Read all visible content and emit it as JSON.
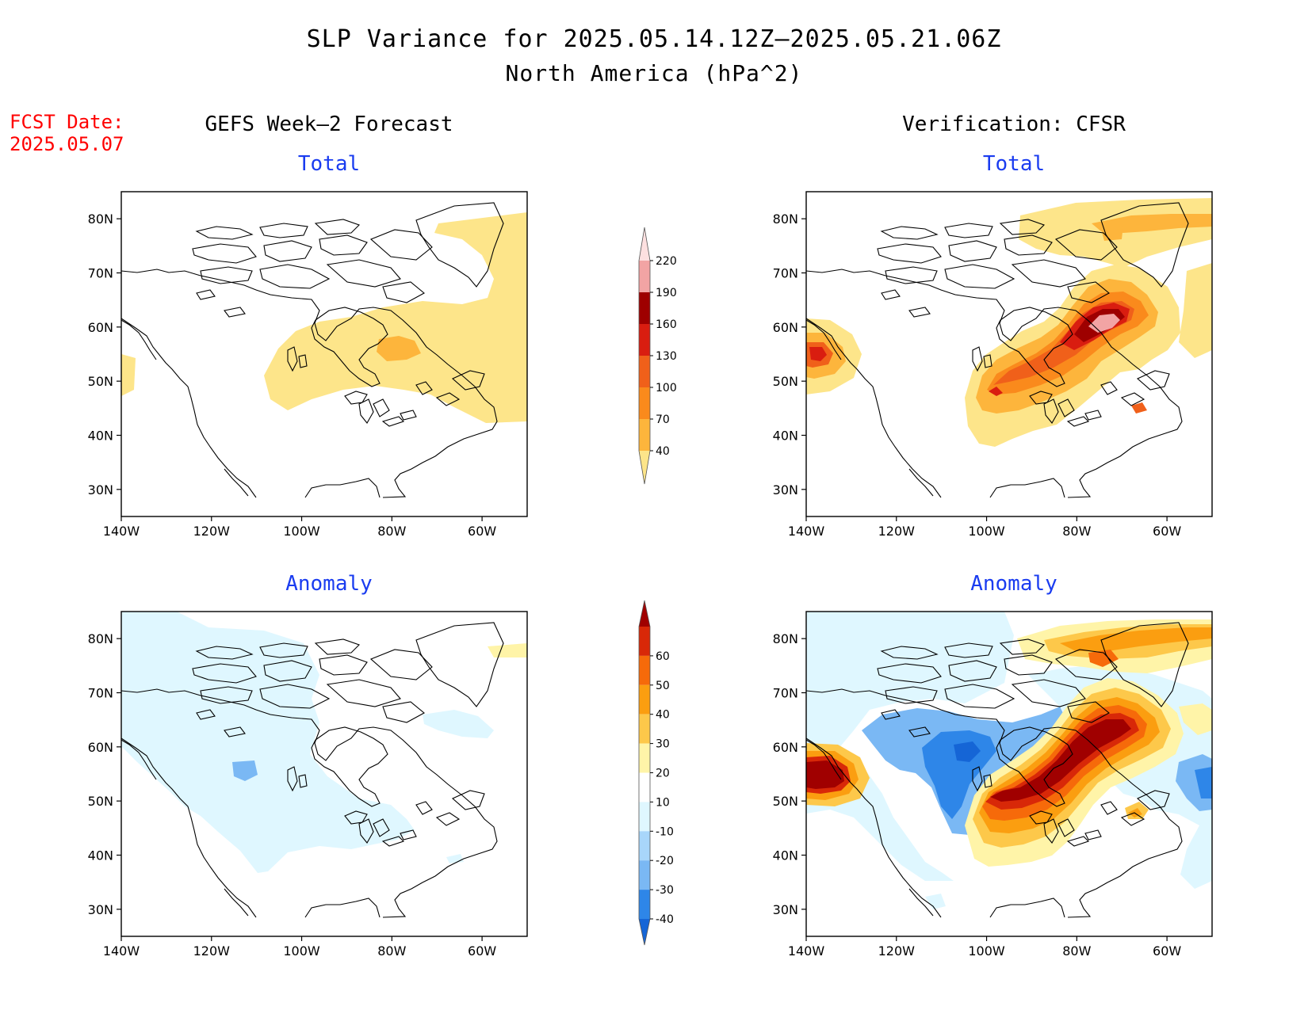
{
  "header": {
    "title_line1": "SLP Variance for 2025.05.14.12Z–2025.05.21.06Z",
    "title_line2": "North America (hPa^2)",
    "fcst_label": "FCST Date:",
    "fcst_date": "2025.05.07"
  },
  "columns": {
    "left_title": "GEFS Week–2 Forecast",
    "right_title": "Verification: CFSR"
  },
  "panels": {
    "top_left_title": "Total",
    "top_right_title": "Total",
    "bottom_left_title": "Anomaly",
    "bottom_right_title": "Anomaly"
  },
  "axes": {
    "lat_labels": [
      "80N",
      "70N",
      "60N",
      "50N",
      "40N",
      "30N"
    ],
    "lon_labels": [
      "140W",
      "120W",
      "100W",
      "80W",
      "60W"
    ]
  },
  "colorbars": {
    "total": {
      "levels": [
        "40",
        "70",
        "100",
        "130",
        "160",
        "190",
        "220"
      ],
      "colors": [
        "#fde58a",
        "#fdb53c",
        "#fa8a1c",
        "#f0601a",
        "#d91d10",
        "#9e0000",
        "#f2a4a4",
        "#fde0e0"
      ]
    },
    "anomaly": {
      "levels": [
        "-40",
        "-30",
        "-20",
        "-10",
        "10",
        "20",
        "30",
        "40",
        "50",
        "60"
      ],
      "colors": [
        "#1565d6",
        "#2e86e8",
        "#7ab8f4",
        "#a8d6fa",
        "#dff7ff",
        "#ffffff",
        "#fff4a8",
        "#fdc84a",
        "#fb9e10",
        "#f66a0a",
        "#d82808",
        "#a00000"
      ]
    }
  },
  "map_data": {
    "region": "North America",
    "lon_range": [
      "140W",
      "50W"
    ],
    "lat_range": [
      "25N",
      "85N"
    ]
  }
}
